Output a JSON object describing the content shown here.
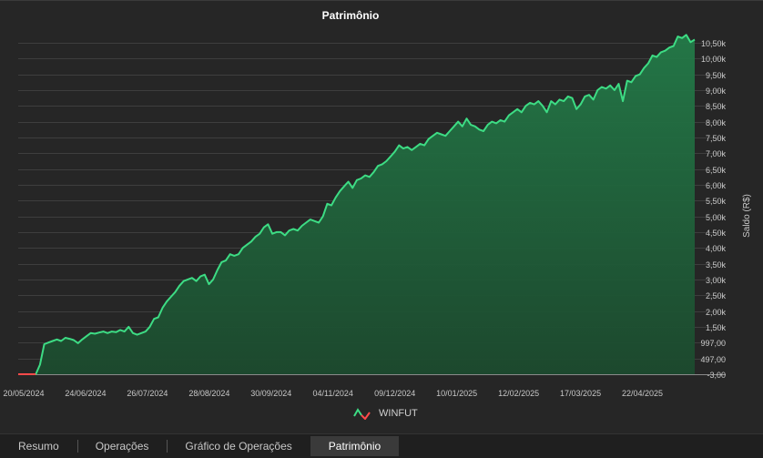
{
  "chart_data": {
    "type": "area",
    "title": "Patrimônio",
    "ylabel": "Saldo (R$)",
    "ylim": [
      -3,
      10760
    ],
    "y_ticks": [
      {
        "value": -3,
        "label": "-3,00"
      },
      {
        "value": 497,
        "label": "497,00"
      },
      {
        "value": 997,
        "label": "997,00"
      },
      {
        "value": 1500,
        "label": "1,50k"
      },
      {
        "value": 2000,
        "label": "2,00k"
      },
      {
        "value": 2500,
        "label": "2,50k"
      },
      {
        "value": 3000,
        "label": "3,00k"
      },
      {
        "value": 3500,
        "label": "3,50k"
      },
      {
        "value": 4000,
        "label": "4,00k"
      },
      {
        "value": 4500,
        "label": "4,50k"
      },
      {
        "value": 5000,
        "label": "5,00k"
      },
      {
        "value": 5500,
        "label": "5,50k"
      },
      {
        "value": 6000,
        "label": "6,00k"
      },
      {
        "value": 6500,
        "label": "6,50k"
      },
      {
        "value": 7000,
        "label": "7,00k"
      },
      {
        "value": 7500,
        "label": "7,50k"
      },
      {
        "value": 8000,
        "label": "8,00k"
      },
      {
        "value": 8500,
        "label": "8,50k"
      },
      {
        "value": 9000,
        "label": "9,00k"
      },
      {
        "value": 9500,
        "label": "9,50k"
      },
      {
        "value": 10000,
        "label": "10,00k"
      },
      {
        "value": 10500,
        "label": "10,50k"
      }
    ],
    "x_ticks": [
      "20/05/2024",
      "24/06/2024",
      "26/07/2024",
      "28/08/2024",
      "30/09/2024",
      "04/11/2024",
      "09/12/2024",
      "10/01/2025",
      "12/02/2025",
      "17/03/2025",
      "22/04/2025"
    ],
    "grid": true,
    "legend_position": "bottom",
    "series": [
      {
        "name": "WINFUT",
        "color": "#3ddc84",
        "values": [
          -3,
          -3,
          -3,
          300,
          950,
          1000,
          1050,
          1100,
          1050,
          1150,
          1120,
          1080,
          980,
          1100,
          1200,
          1300,
          1280,
          1320,
          1350,
          1300,
          1350,
          1330,
          1400,
          1350,
          1500,
          1300,
          1250,
          1300,
          1350,
          1500,
          1750,
          1800,
          2100,
          2300,
          2450,
          2600,
          2800,
          2950,
          3000,
          3050,
          2950,
          3100,
          3150,
          2850,
          3000,
          3300,
          3550,
          3600,
          3800,
          3750,
          3800,
          4000,
          4100,
          4200,
          4350,
          4450,
          4650,
          4750,
          4450,
          4500,
          4500,
          4400,
          4550,
          4600,
          4550,
          4700,
          4800,
          4900,
          4850,
          4800,
          5000,
          5400,
          5350,
          5600,
          5800,
          5950,
          6100,
          5900,
          6150,
          6200,
          6300,
          6250,
          6400,
          6600,
          6650,
          6750,
          6900,
          7050,
          7250,
          7150,
          7200,
          7100,
          7200,
          7300,
          7250,
          7450,
          7550,
          7650,
          7600,
          7550,
          7700,
          7850,
          8000,
          7850,
          8100,
          7900,
          7850,
          7750,
          7700,
          7900,
          8000,
          7950,
          8050,
          8000,
          8200,
          8300,
          8400,
          8300,
          8500,
          8600,
          8550,
          8650,
          8500,
          8300,
          8650,
          8550,
          8700,
          8650,
          8800,
          8750,
          8400,
          8550,
          8800,
          8850,
          8700,
          9000,
          9100,
          9050,
          9150,
          9000,
          9200,
          8650,
          9300,
          9250,
          9450,
          9500,
          9700,
          9850,
          10100,
          10050,
          10200,
          10250,
          10350,
          10400,
          10700,
          10650,
          10750,
          10520,
          10600
        ]
      }
    ]
  },
  "tabs": [
    {
      "label": "Resumo",
      "active": false
    },
    {
      "label": "Operações",
      "active": false
    },
    {
      "label": "Gráfico de Operações",
      "active": false
    },
    {
      "label": "Patrimônio",
      "active": true
    }
  ]
}
